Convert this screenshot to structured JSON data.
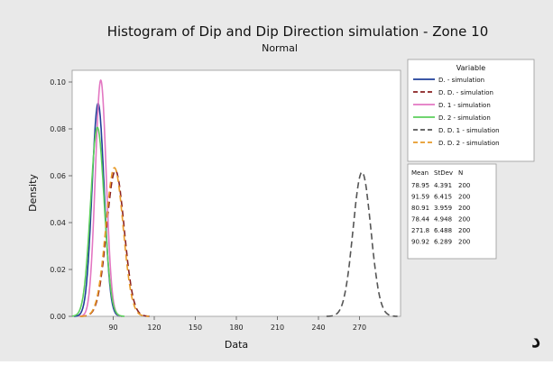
{
  "chart_data": {
    "type": "line",
    "title": "Histogram of Dip and Dip Direction  simulation - Zone 10",
    "subtitle": "Normal",
    "xlabel": "Data",
    "ylabel": "Density",
    "xlim": [
      60,
      300
    ],
    "ylim": [
      0,
      0.105
    ],
    "x_ticks": [
      90,
      120,
      150,
      180,
      210,
      240,
      270
    ],
    "y_ticks": [
      0.0,
      0.02,
      0.04,
      0.06,
      0.08,
      0.1
    ],
    "y_tick_labels": [
      "0.00",
      "0.02",
      "0.04",
      "0.06",
      "0.08",
      "0.10"
    ],
    "legend_title": "Variable",
    "legend_position": "right",
    "stats_headers": [
      "Mean",
      "StDev",
      "N"
    ],
    "series": [
      {
        "name": "D. - simulation",
        "mean": 78.95,
        "stdev": 4.391,
        "n": 200,
        "color": "#1f3f99",
        "dash": "solid"
      },
      {
        "name": "D. D. - simulation",
        "mean": 91.59,
        "stdev": 6.415,
        "n": 200,
        "color": "#8a2020",
        "dash": "dashed"
      },
      {
        "name": "D. 1 - simulation",
        "mean": 80.91,
        "stdev": 3.959,
        "n": 200,
        "color": "#e377c2",
        "dash": "solid"
      },
      {
        "name": "D. 2 - simulation",
        "mean": 78.44,
        "stdev": 4.948,
        "n": 200,
        "color": "#5ccf5c",
        "dash": "solid"
      },
      {
        "name": "D. D. 1 - simulation",
        "mean": 271.8,
        "stdev": 6.488,
        "n": 200,
        "color": "#555555",
        "dash": "dashed"
      },
      {
        "name": "D. D. 2 - simulation",
        "mean": 90.92,
        "stdev": 6.289,
        "n": 200,
        "color": "#e89a28",
        "dash": "dashed"
      }
    ],
    "stats_rows": [
      [
        "78.95",
        "4.391",
        "200"
      ],
      [
        "91.59",
        "6.415",
        "200"
      ],
      [
        "80.91",
        "3.959",
        "200"
      ],
      [
        "78.44",
        "4.948",
        "200"
      ],
      [
        "271.8",
        "6.488",
        "200"
      ],
      [
        "90.92",
        "6.289",
        "200"
      ]
    ],
    "grid": false
  },
  "corner_mark": "د"
}
